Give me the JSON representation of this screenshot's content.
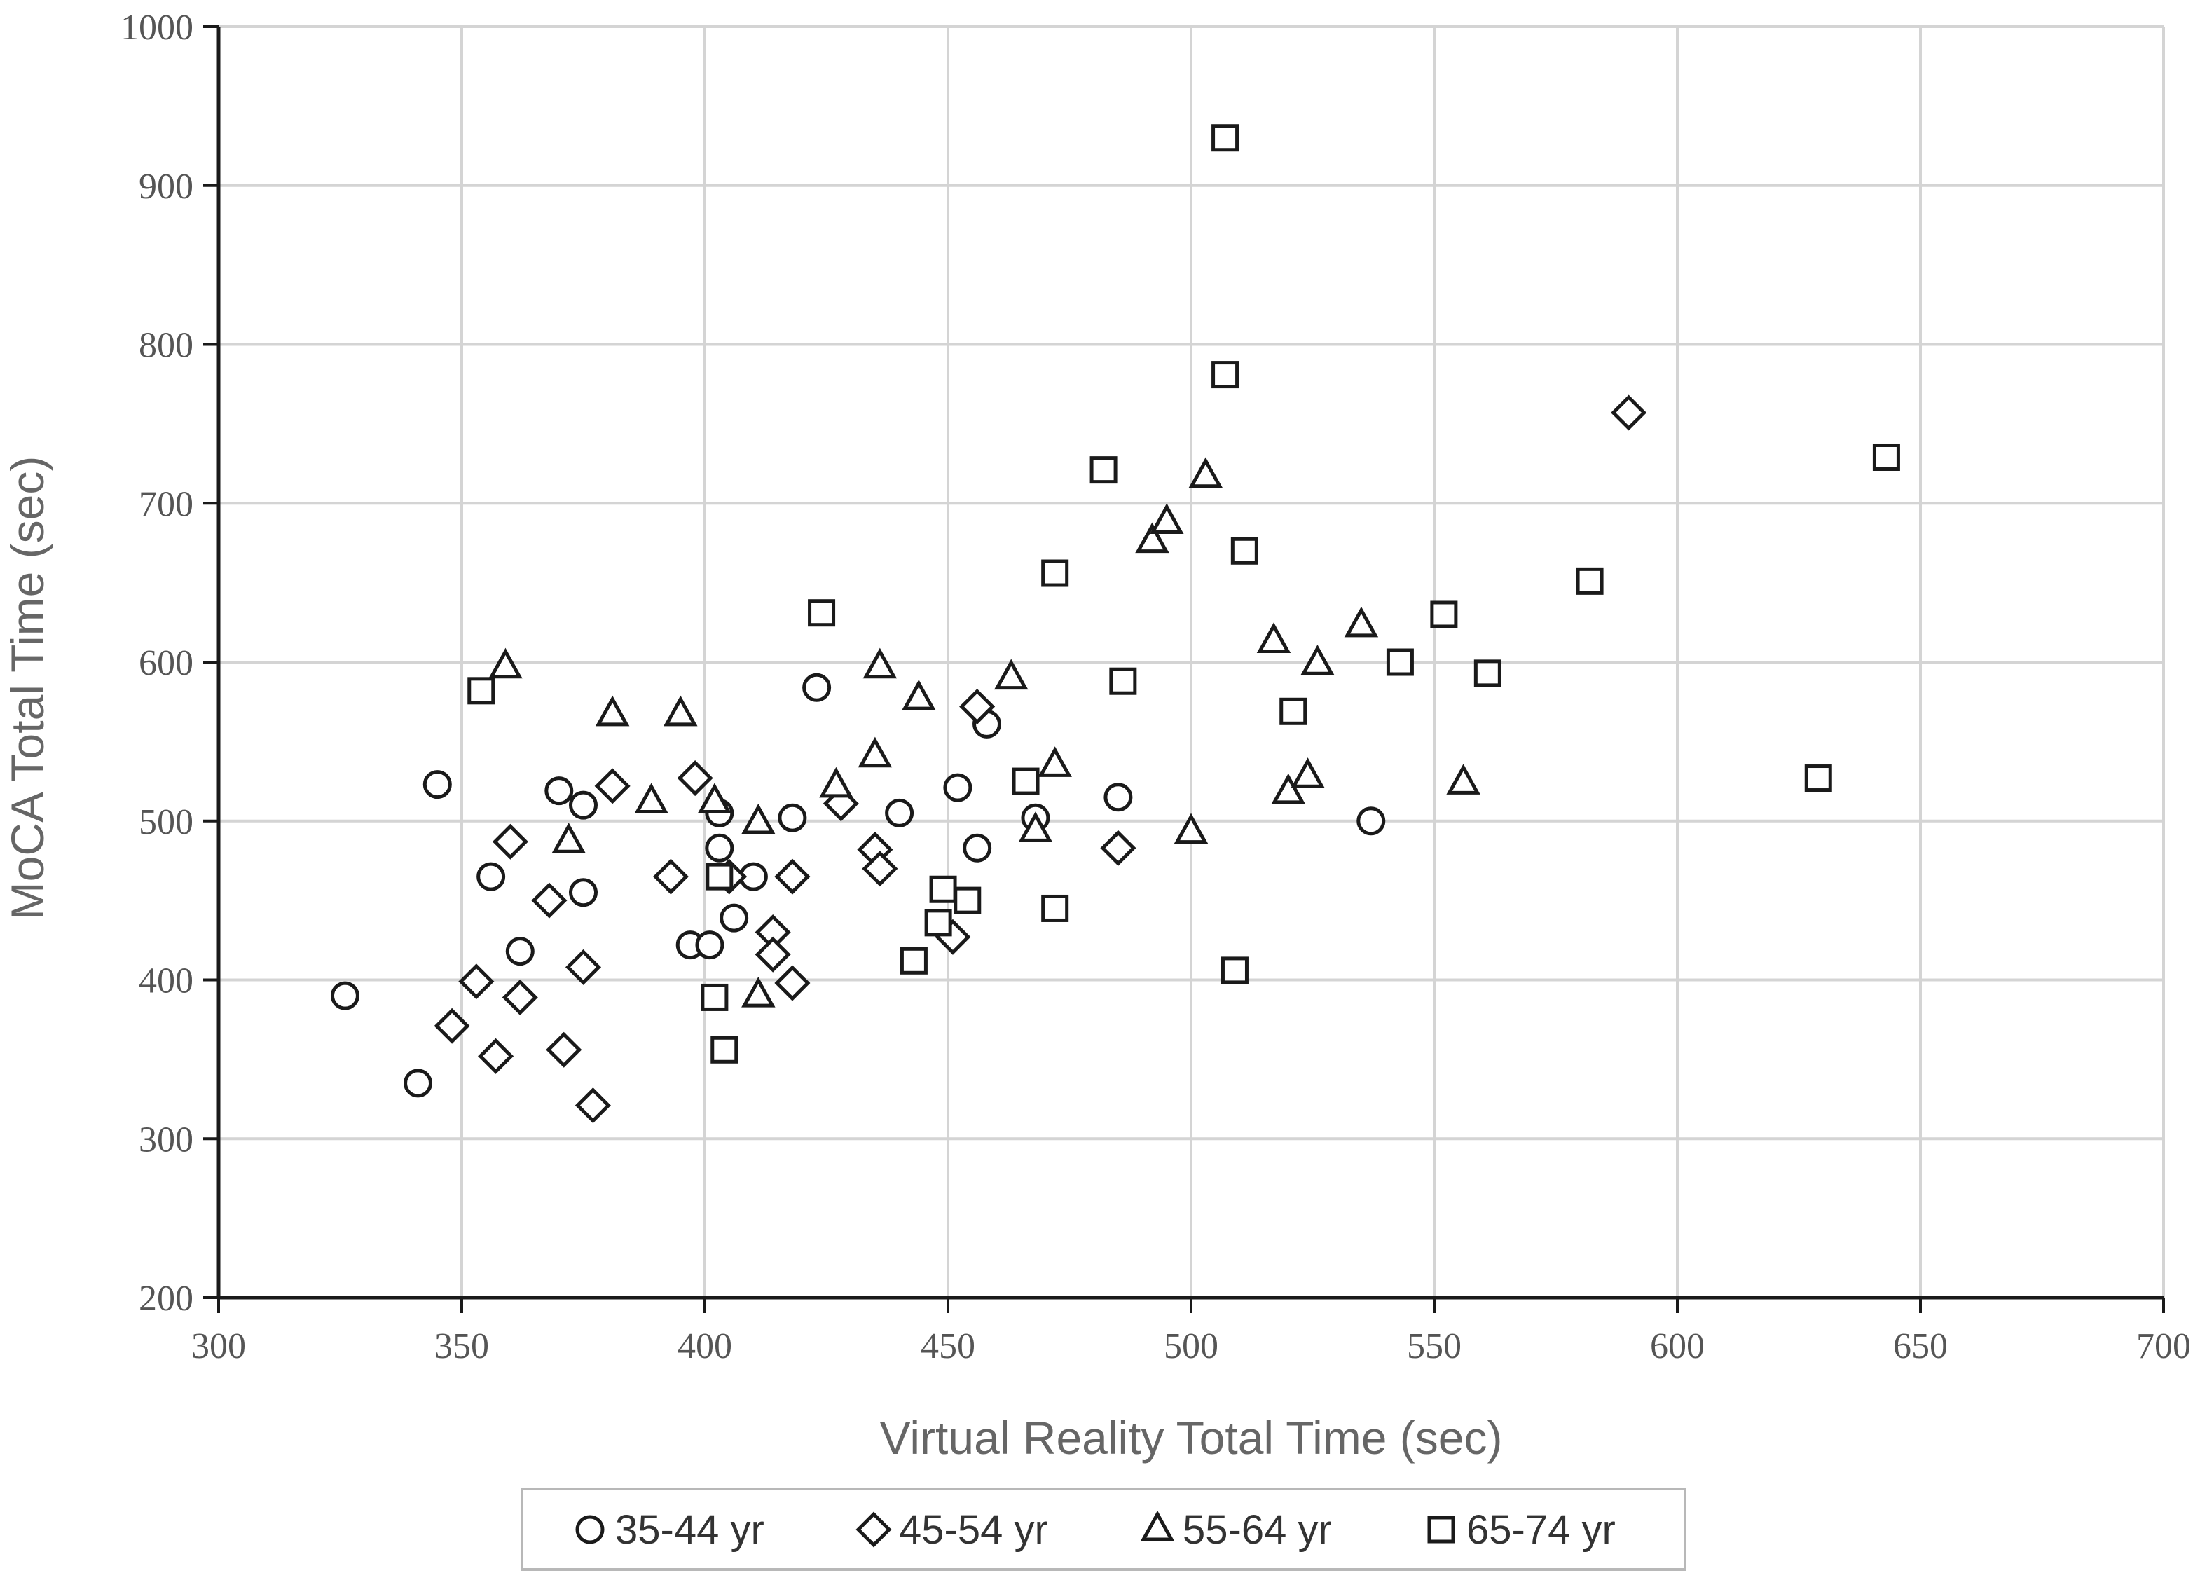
{
  "chart_data": {
    "type": "scatter",
    "title": "",
    "xlabel": "Virtual Reality Total Time (sec)",
    "ylabel": "MoCA Total Time (sec)",
    "xlim": [
      300,
      700
    ],
    "ylim": [
      200,
      1000
    ],
    "xticks": [
      300,
      350,
      400,
      450,
      500,
      550,
      600,
      650,
      700
    ],
    "yticks": [
      200,
      300,
      400,
      500,
      600,
      700,
      800,
      900,
      1000
    ],
    "grid": true,
    "legend_position": "bottom",
    "series": [
      {
        "name": "35-44 yr",
        "marker": "circle",
        "points": [
          [
            326,
            390
          ],
          [
            341,
            335
          ],
          [
            345,
            523
          ],
          [
            356,
            465
          ],
          [
            362,
            418
          ],
          [
            370,
            519
          ],
          [
            375,
            510
          ],
          [
            375,
            455
          ],
          [
            397,
            422
          ],
          [
            401,
            422
          ],
          [
            403,
            505
          ],
          [
            403,
            483
          ],
          [
            406,
            439
          ],
          [
            410,
            465
          ],
          [
            418,
            502
          ],
          [
            423,
            584
          ],
          [
            440,
            505
          ],
          [
            452,
            521
          ],
          [
            456,
            483
          ],
          [
            458,
            561
          ],
          [
            468,
            502
          ],
          [
            485,
            515
          ],
          [
            537,
            500
          ]
        ]
      },
      {
        "name": "45-54 yr",
        "marker": "diamond",
        "points": [
          [
            348,
            371
          ],
          [
            353,
            399
          ],
          [
            357,
            352
          ],
          [
            360,
            487
          ],
          [
            362,
            389
          ],
          [
            368,
            450
          ],
          [
            371,
            356
          ],
          [
            375,
            408
          ],
          [
            377,
            321
          ],
          [
            381,
            522
          ],
          [
            393,
            465
          ],
          [
            398,
            527
          ],
          [
            405,
            465
          ],
          [
            414,
            430
          ],
          [
            414,
            416
          ],
          [
            418,
            465
          ],
          [
            418,
            465
          ],
          [
            418,
            398
          ],
          [
            428,
            511
          ],
          [
            435,
            482
          ],
          [
            436,
            470
          ],
          [
            451,
            427
          ],
          [
            456,
            572
          ],
          [
            485,
            483
          ],
          [
            590,
            757
          ]
        ]
      },
      {
        "name": "55-64 yr",
        "marker": "triangle",
        "points": [
          [
            359,
            597
          ],
          [
            372,
            487
          ],
          [
            381,
            567
          ],
          [
            389,
            512
          ],
          [
            395,
            567
          ],
          [
            402,
            512
          ],
          [
            411,
            499
          ],
          [
            411,
            390
          ],
          [
            427,
            522
          ],
          [
            435,
            541
          ],
          [
            436,
            597
          ],
          [
            444,
            577
          ],
          [
            463,
            590
          ],
          [
            468,
            494
          ],
          [
            472,
            535
          ],
          [
            492,
            676
          ],
          [
            495,
            688
          ],
          [
            500,
            493
          ],
          [
            503,
            717
          ],
          [
            517,
            613
          ],
          [
            520,
            518
          ],
          [
            524,
            528
          ],
          [
            526,
            599
          ],
          [
            535,
            623
          ],
          [
            556,
            524
          ]
        ]
      },
      {
        "name": "65-74 yr",
        "marker": "square",
        "points": [
          [
            354,
            582
          ],
          [
            402,
            389
          ],
          [
            403,
            465
          ],
          [
            404,
            356
          ],
          [
            424,
            631
          ],
          [
            443,
            412
          ],
          [
            448,
            436
          ],
          [
            449,
            457
          ],
          [
            454,
            450
          ],
          [
            466,
            525
          ],
          [
            472,
            445
          ],
          [
            472,
            656
          ],
          [
            482,
            721
          ],
          [
            486,
            588
          ],
          [
            507,
            930
          ],
          [
            507,
            781
          ],
          [
            509,
            406
          ],
          [
            511,
            670
          ],
          [
            521,
            569
          ],
          [
            543,
            600
          ],
          [
            552,
            630
          ],
          [
            561,
            593
          ],
          [
            582,
            651
          ],
          [
            629,
            527
          ],
          [
            643,
            729
          ]
        ]
      }
    ]
  }
}
